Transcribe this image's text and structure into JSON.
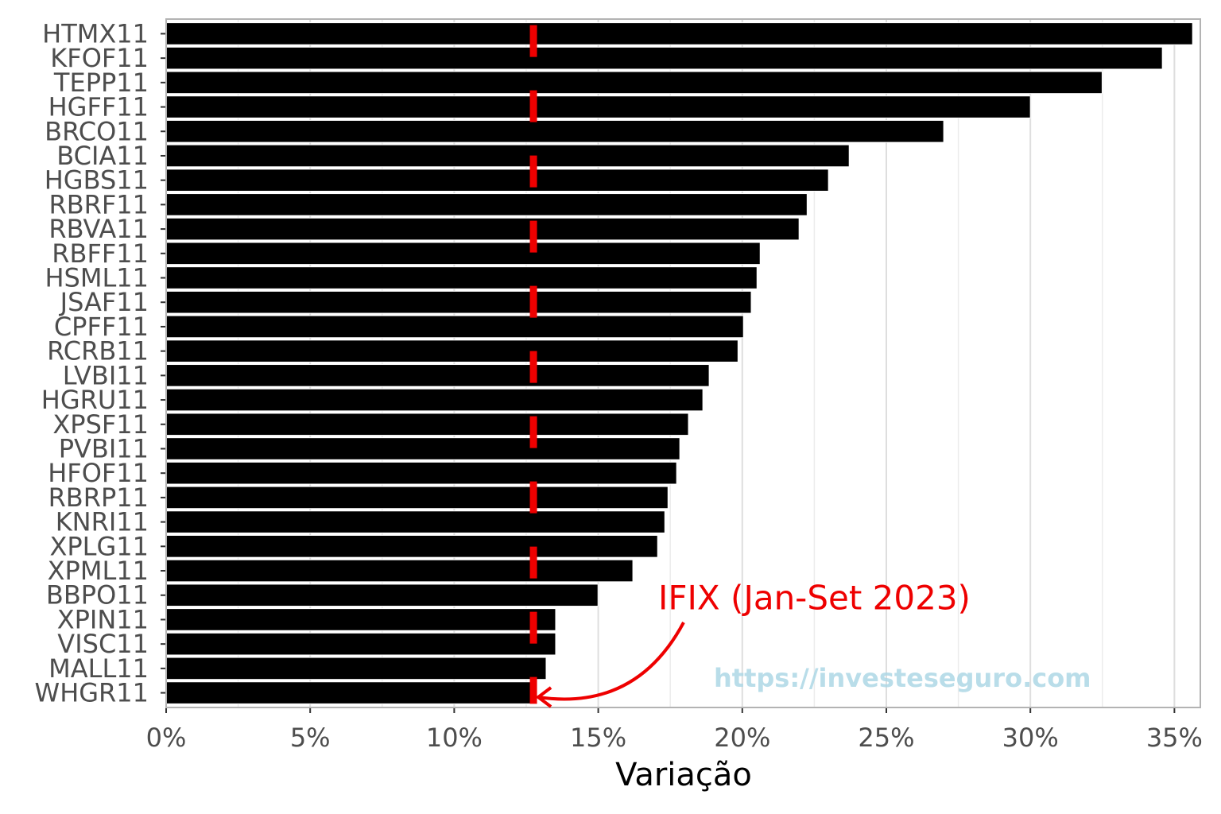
{
  "chart_data": {
    "type": "barh",
    "categories": [
      "HTMX11",
      "KFOF11",
      "TEPP11",
      "HGFF11",
      "BRCO11",
      "BCIA11",
      "HGBS11",
      "RBRF11",
      "RBVA11",
      "RBFF11",
      "HSML11",
      "JSAF11",
      "CPFF11",
      "RCRB11",
      "LVBI11",
      "HGRU11",
      "XPSF11",
      "PVBI11",
      "HFOF11",
      "RBRP11",
      "KNRI11",
      "XPLG11",
      "XPML11",
      "BBPO11",
      "XPIN11",
      "VISC11",
      "MALL11",
      "WHGR11"
    ],
    "values": [
      35.63,
      34.58,
      32.49,
      30.0,
      26.99,
      23.71,
      22.99,
      22.25,
      21.97,
      20.62,
      20.51,
      20.31,
      20.04,
      19.85,
      18.85,
      18.63,
      18.13,
      17.83,
      17.72,
      17.42,
      17.31,
      17.06,
      16.2,
      14.99,
      13.52,
      13.52,
      13.19,
      12.67
    ],
    "color": "#000000",
    "xlabel": "Variação",
    "xlim": [
      0,
      35.9
    ],
    "xticks": [
      {
        "value": 0,
        "label": "0%"
      },
      {
        "value": 5,
        "label": "5%"
      },
      {
        "value": 10,
        "label": "10%"
      },
      {
        "value": 15,
        "label": "15%"
      },
      {
        "value": 20,
        "label": "20%"
      },
      {
        "value": 25,
        "label": "25%"
      },
      {
        "value": 30,
        "label": "30%"
      },
      {
        "value": 35,
        "label": "35%"
      }
    ],
    "grid": true,
    "reference_line": {
      "value": 12.75,
      "label": "IFIX (Jan-Set 2023)",
      "color": "#ee0000"
    },
    "watermark": "https://investeseguro.com"
  }
}
